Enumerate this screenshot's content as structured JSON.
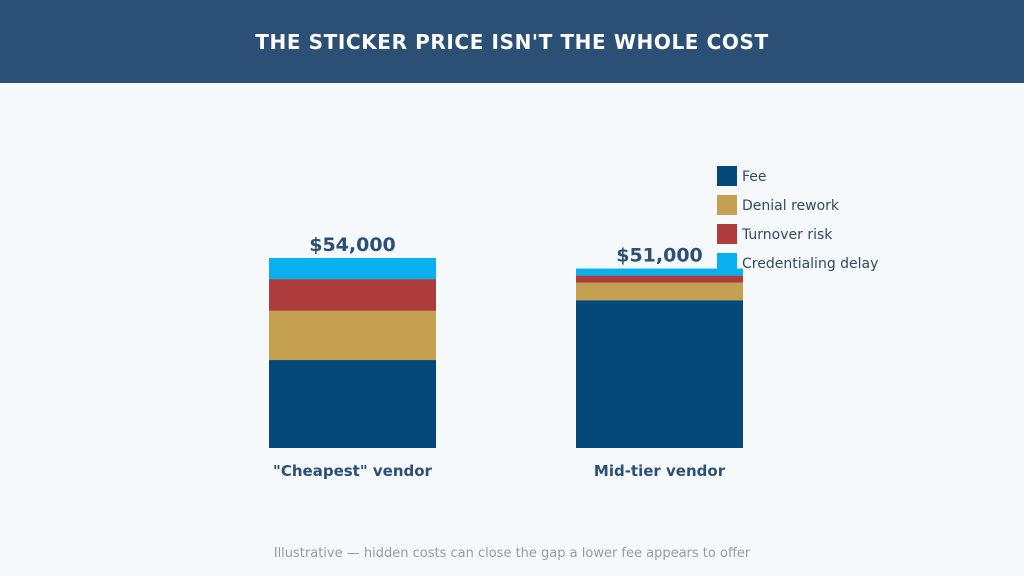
{
  "header": {
    "title": "THE STICKER PRICE ISN'T THE WHOLE COST"
  },
  "footnote": "Illustrative — hidden costs can close the gap a lower fee appears to offer",
  "colors": {
    "header_bg": "#2c4f75",
    "background": "#f5f9fc",
    "text_dark": "#2c4f75",
    "legend_text": "#34495e",
    "footnote": "#9a9a9a"
  },
  "chart_data": {
    "type": "bar",
    "stacked": true,
    "title": "THE STICKER PRICE ISN'T THE WHOLE COST",
    "xlabel": "",
    "ylabel": "",
    "categories": [
      "\"Cheapest\" vendor",
      "Mid-tier vendor"
    ],
    "totals_labels": [
      "$54,000",
      "$51,000"
    ],
    "totals": [
      54000,
      51000
    ],
    "ylim": [
      0,
      54000
    ],
    "grid": false,
    "legend_position": "top-right",
    "series": [
      {
        "name": "Fee",
        "color": "#034878",
        "values": [
          25000,
          42000
        ]
      },
      {
        "name": "Denial rework",
        "color": "#c6a051",
        "values": [
          14000,
          5000
        ]
      },
      {
        "name": "Turnover risk",
        "color": "#ae3c3c",
        "values": [
          9000,
          2000
        ]
      },
      {
        "name": "Credentialing delay",
        "color": "#08b0ef",
        "values": [
          6000,
          2000
        ]
      }
    ]
  }
}
